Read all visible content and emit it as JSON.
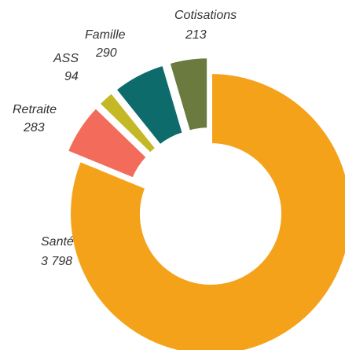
{
  "chart_data": {
    "type": "donut",
    "categories": [
      "Santé",
      "Retraite",
      "ASS",
      "Famille",
      "Cotisations"
    ],
    "values": [
      3798,
      283,
      94,
      290,
      213
    ],
    "value_labels": [
      "3 798",
      "283",
      "94",
      "290",
      "213"
    ],
    "colors": [
      "#f5a21b",
      "#f26b5b",
      "#c4b826",
      "#0e6b6b",
      "#6b7a3f"
    ]
  }
}
